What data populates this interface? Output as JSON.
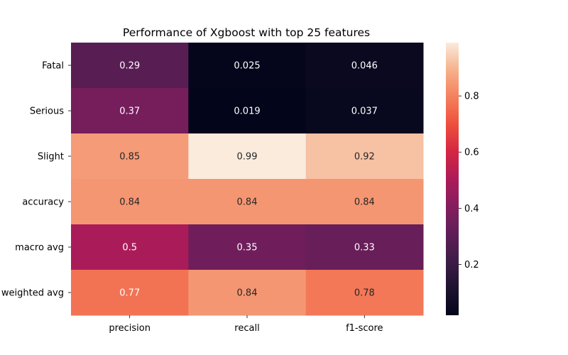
{
  "chart_data": {
    "type": "heatmap",
    "title": "Performance of Xgboost with top 25 features",
    "rows": [
      "Fatal",
      "Serious",
      "Slight",
      "accuracy",
      "macro avg",
      "weighted avg"
    ],
    "columns": [
      "precision",
      "recall",
      "f1-score"
    ],
    "values": [
      [
        0.29,
        0.025,
        0.046
      ],
      [
        0.37,
        0.019,
        0.037
      ],
      [
        0.85,
        0.99,
        0.92
      ],
      [
        0.84,
        0.84,
        0.84
      ],
      [
        0.5,
        0.35,
        0.33
      ],
      [
        0.77,
        0.84,
        0.78
      ]
    ],
    "cell_labels": [
      [
        "0.29",
        "0.025",
        "0.046"
      ],
      [
        "0.37",
        "0.019",
        "0.037"
      ],
      [
        "0.85",
        "0.99",
        "0.92"
      ],
      [
        "0.84",
        "0.84",
        "0.84"
      ],
      [
        "0.5",
        "0.35",
        "0.33"
      ],
      [
        "0.77",
        "0.84",
        "0.78"
      ]
    ],
    "colorbar": {
      "colormap": "rocket",
      "vmin": 0.019,
      "vmax": 0.99,
      "ticks": [
        0.2,
        0.4,
        0.6,
        0.8
      ],
      "tick_labels": [
        "0.2",
        "0.4",
        "0.6",
        "0.8"
      ]
    },
    "xlabel": "",
    "ylabel": ""
  }
}
